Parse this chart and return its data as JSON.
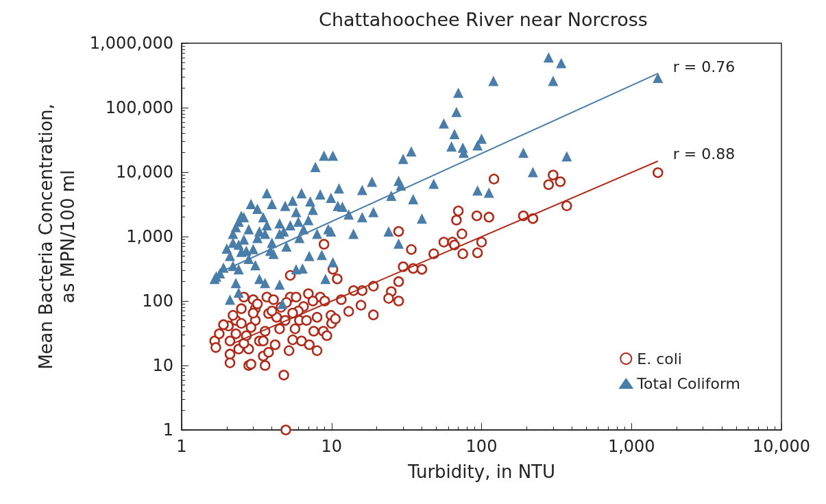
{
  "chart_data": {
    "type": "scatter",
    "title": "Chattahoochee River near Norcross",
    "xlabel": "Turbidity, in NTU",
    "ylabel": "Mean Bacteria Concentration,\nas MPN/100 ml",
    "log": "xy",
    "grid": false,
    "legend": "bottom right",
    "xlim": [
      1,
      10000
    ],
    "xticks": [
      1,
      10,
      100,
      {
        "value": 1000,
        "label": "1,000"
      },
      {
        "value": 10000,
        "label": "10,000"
      }
    ],
    "ylim": [
      1,
      1000000
    ],
    "yticks": [
      1,
      10,
      100,
      {
        "value": 1000,
        "label": "1,000"
      },
      {
        "value": 10000,
        "label": "10,000"
      },
      {
        "value": 100000,
        "label": "100,000"
      },
      {
        "value": 1000000,
        "label": "1,000,000"
      }
    ],
    "annotations": [
      "r = 0.76",
      "r = 0.88"
    ],
    "series": [
      {
        "name": "E. coli",
        "marker": "circle",
        "color": "#b02a1a",
        "x": [
          1500,
          300,
          280,
          335,
          121,
          370,
          190,
          220,
          70,
          68,
          93,
          112,
          28,
          74,
          56,
          64,
          66,
          100,
          34,
          48,
          75,
          94,
          30,
          35,
          40,
          28,
          25,
          24,
          28,
          19,
          16,
          14,
          11.6,
          15.7,
          13,
          19,
          10.2,
          10.9,
          8.9,
          5.3,
          4.95,
          4.8,
          1.66,
          1.69,
          1.78,
          2.1,
          2.05,
          2.1,
          2.3,
          2.4,
          2.5,
          2.6,
          2.8,
          2.9,
          2.8,
          3,
          3.1,
          3.3,
          3.5,
          3.6,
          3.7,
          3.8,
          3.8,
          4.2,
          4.1,
          4.5,
          5.2,
          5.3,
          5.5,
          5.8,
          6.3,
          6.1,
          7,
          7.1,
          6.8,
          7.6,
          8,
          8.4,
          8.8,
          9.3,
          9.9,
          10,
          8,
          6.5,
          4.6,
          3.1,
          3.6,
          5.7,
          2.6,
          2.3,
          2.9,
          4.9,
          4.3,
          10.6,
          2.7,
          2.1,
          3.5,
          3.2,
          4,
          5,
          6,
          9,
          2.2,
          2.5,
          1.9,
          5.5,
          7.5,
          3
        ],
        "values": [
          9800,
          9000,
          6400,
          7100,
          7800,
          3000,
          2100,
          1900,
          2500,
          1800,
          2100,
          2000,
          1200,
          1100,
          820,
          820,
          740,
          820,
          630,
          540,
          540,
          560,
          340,
          320,
          310,
          200,
          140,
          110,
          100,
          170,
          145,
          145,
          105,
          86,
          69,
          61,
          310,
          220,
          760,
          250,
          1,
          7.1,
          24,
          19,
          31,
          24,
          41,
          11,
          50,
          18,
          76,
          115,
          10,
          10.5,
          18,
          105,
          50,
          24,
          14,
          10,
          115,
          16,
          64,
          21,
          105,
          37,
          17,
          115,
          25,
          115,
          24,
          50,
          130,
          21,
          50,
          34,
          17,
          115,
          34,
          29,
          60,
          45,
          56,
          82,
          80,
          76,
          34,
          37,
          22,
          31,
          39,
          50,
          56,
          53,
          29,
          15,
          24,
          90,
          70,
          95,
          70,
          100,
          60,
          45,
          43,
          65,
          100,
          65
        ]
      },
      {
        "name": "Total Coliform",
        "marker": "triangle",
        "color": "#4a7ea8",
        "x": [
          280,
          340,
          300,
          120,
          1500,
          70,
          68,
          56,
          66,
          100,
          94,
          63,
          75,
          76,
          190,
          370,
          220,
          34,
          30,
          10.2,
          8.9,
          7.8,
          18.6,
          28,
          29,
          48,
          16,
          11.2,
          94,
          112,
          25,
          35,
          9.9,
          11,
          11.8,
          13,
          16,
          19,
          40,
          9.9,
          14,
          24,
          28,
          10.2,
          3.7,
          6.3,
          8.4,
          2.9,
          5.5,
          7.2,
          2.5,
          4,
          9.5,
          7.1,
          8.6,
          6.4,
          5.8,
          9.1,
          4.5,
          1.7,
          1.8,
          2.4,
          2.3,
          3.3,
          2.2,
          2.4,
          2.8,
          3.7,
          4.5,
          5.3,
          3,
          2.1,
          3.1,
          4.1,
          6.1,
          2.5,
          3.2,
          2.4,
          5.8,
          4.9,
          3.5,
          8,
          1.66,
          2.4,
          3.6,
          4.7,
          2.1,
          2.2,
          2.6,
          2.3,
          2.7,
          3.3,
          2.6,
          3.6,
          4,
          4.8,
          5,
          6,
          7,
          7.5,
          6.5,
          3.9,
          2.2,
          2.8,
          4.5,
          3.2,
          2,
          1.9
        ],
        "values": [
          600000,
          490000,
          260000,
          260000,
          290000,
          170000,
          86000,
          57000,
          39000,
          33000,
          26000,
          25000,
          24000,
          20000,
          20000,
          17600,
          10000,
          21000,
          16000,
          18000,
          18000,
          12000,
          7100,
          7300,
          6200,
          6600,
          5300,
          5600,
          5200,
          4800,
          4300,
          3800,
          4000,
          3000,
          2900,
          2200,
          2000,
          2400,
          1900,
          1200,
          1100,
          1200,
          780,
          400,
          4700,
          4700,
          4500,
          3200,
          3600,
          3500,
          2100,
          3200,
          1300,
          500,
          520,
          320,
          310,
          220,
          180,
          240,
          270,
          310,
          190,
          220,
          1100,
          750,
          1300,
          1500,
          1100,
          1500,
          640,
          500,
          360,
          540,
          950,
          580,
          950,
          1700,
          2400,
          3000,
          2000,
          1100,
          220,
          135,
          190,
          90,
          105,
          800,
          900,
          1400,
          600,
          1200,
          2000,
          1100,
          800,
          1200,
          700,
          1700,
          1800,
          2600,
          1300,
          600,
          350,
          450,
          1600,
          2700,
          650,
          330
        ]
      },
      {
        "type": "line",
        "color": "#4a7ea8",
        "x": [
          1.8,
          1500
        ],
        "values": [
          280,
          340000
        ]
      },
      {
        "type": "line",
        "color": "#b02a1a",
        "x": [
          2.2,
          1500
        ],
        "values": [
          22,
          14800
        ]
      }
    ]
  }
}
